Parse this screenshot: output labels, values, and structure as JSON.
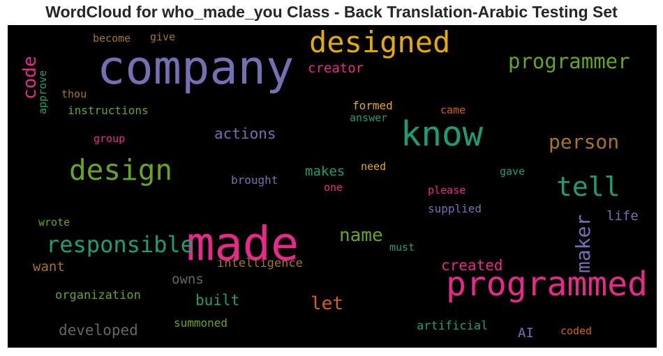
{
  "chart_data": {
    "type": "wordcloud",
    "title": "WordCloud for who_made_you Class - Back Translation-Arabic Testing Set",
    "background_color": "#000000",
    "colormap": "Dark2",
    "words": [
      {
        "text": "company",
        "weight": 1.0,
        "color": "#7570b3",
        "rotation": 0
      },
      {
        "text": "made",
        "weight": 1.0,
        "color": "#e7298a",
        "rotation": 0
      },
      {
        "text": "programmed",
        "weight": 0.75,
        "color": "#e7298a",
        "rotation": 0
      },
      {
        "text": "know",
        "weight": 0.76,
        "color": "#1b9e77",
        "rotation": 0
      },
      {
        "text": "designed",
        "weight": 0.66,
        "color": "#e6ab02",
        "rotation": 0
      },
      {
        "text": "design",
        "weight": 0.64,
        "color": "#66a61e",
        "rotation": 0
      },
      {
        "text": "tell",
        "weight": 0.6,
        "color": "#1b9e77",
        "rotation": 0
      },
      {
        "text": "responsible",
        "weight": 0.5,
        "color": "#1b9e77",
        "rotation": 0
      },
      {
        "text": "programmer",
        "weight": 0.46,
        "color": "#66a61e",
        "rotation": 0
      },
      {
        "text": "person",
        "weight": 0.44,
        "color": "#a6761d",
        "rotation": 0
      },
      {
        "text": "maker",
        "weight": 0.44,
        "color": "#7570b3",
        "rotation": 90
      },
      {
        "text": "code",
        "weight": 0.4,
        "color": "#e7298a",
        "rotation": 90
      },
      {
        "text": "name",
        "weight": 0.4,
        "color": "#66a61e",
        "rotation": 0
      },
      {
        "text": "let",
        "weight": 0.4,
        "color": "#d95f02",
        "rotation": 0
      },
      {
        "text": "actions",
        "weight": 0.33,
        "color": "#7570b3",
        "rotation": 0
      },
      {
        "text": "built",
        "weight": 0.33,
        "color": "#1b9e77",
        "rotation": 0
      },
      {
        "text": "created",
        "weight": 0.33,
        "color": "#e7298a",
        "rotation": 0
      },
      {
        "text": "developed",
        "weight": 0.33,
        "color": "#666666",
        "rotation": 0
      },
      {
        "text": "creator",
        "weight": 0.3,
        "color": "#e7298a",
        "rotation": 0
      },
      {
        "text": "makes",
        "weight": 0.3,
        "color": "#1b9e77",
        "rotation": 0
      },
      {
        "text": "owns",
        "weight": 0.3,
        "color": "#666666",
        "rotation": 0
      },
      {
        "text": "want",
        "weight": 0.3,
        "color": "#a6761d",
        "rotation": 0
      },
      {
        "text": "life",
        "weight": 0.3,
        "color": "#7570b3",
        "rotation": 0
      },
      {
        "text": "AI",
        "weight": 0.3,
        "color": "#7570b3",
        "rotation": 0
      },
      {
        "text": "intelligence",
        "weight": 0.26,
        "color": "#a6761d",
        "rotation": 0
      },
      {
        "text": "organization",
        "weight": 0.26,
        "color": "#66a61e",
        "rotation": 0
      },
      {
        "text": "artificial",
        "weight": 0.26,
        "color": "#1b9e77",
        "rotation": 0
      },
      {
        "text": "instructions",
        "weight": 0.24,
        "color": "#66a61e",
        "rotation": 0
      },
      {
        "text": "brought",
        "weight": 0.24,
        "color": "#7570b3",
        "rotation": 0
      },
      {
        "text": "supplied",
        "weight": 0.24,
        "color": "#7570b3",
        "rotation": 0
      },
      {
        "text": "summoned",
        "weight": 0.24,
        "color": "#66a61e",
        "rotation": 0
      },
      {
        "text": "formed",
        "weight": 0.24,
        "color": "#e6ab02",
        "rotation": 0
      },
      {
        "text": "become",
        "weight": 0.23,
        "color": "#a6761d",
        "rotation": 0
      },
      {
        "text": "give",
        "weight": 0.23,
        "color": "#a6761d",
        "rotation": 0
      },
      {
        "text": "thou",
        "weight": 0.23,
        "color": "#a6761d",
        "rotation": 0
      },
      {
        "text": "approve",
        "weight": 0.23,
        "color": "#1b9e77",
        "rotation": 90
      },
      {
        "text": "answer",
        "weight": 0.23,
        "color": "#1b9e77",
        "rotation": 0
      },
      {
        "text": "came",
        "weight": 0.23,
        "color": "#d95f02",
        "rotation": 0
      },
      {
        "text": "group",
        "weight": 0.23,
        "color": "#e7298a",
        "rotation": 0
      },
      {
        "text": "need",
        "weight": 0.23,
        "color": "#e6ab02",
        "rotation": 0
      },
      {
        "text": "gave",
        "weight": 0.23,
        "color": "#1b9e77",
        "rotation": 0
      },
      {
        "text": "one",
        "weight": 0.23,
        "color": "#e7298a",
        "rotation": 0
      },
      {
        "text": "please",
        "weight": 0.23,
        "color": "#e7298a",
        "rotation": 0
      },
      {
        "text": "wrote",
        "weight": 0.23,
        "color": "#66a61e",
        "rotation": 0
      },
      {
        "text": "must",
        "weight": 0.23,
        "color": "#1b9e77",
        "rotation": 0
      },
      {
        "text": "coded",
        "weight": 0.23,
        "color": "#d95f02",
        "rotation": 0
      }
    ]
  }
}
